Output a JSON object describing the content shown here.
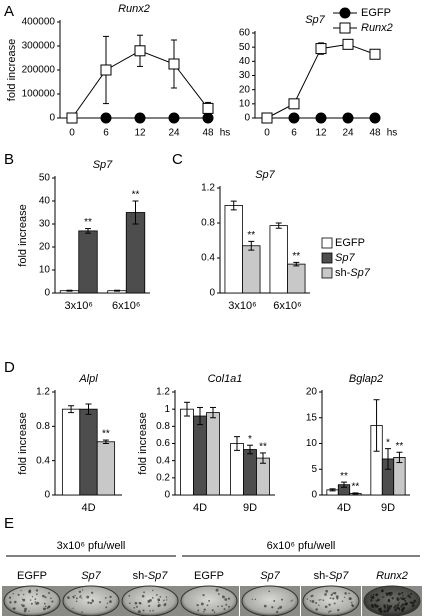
{
  "panels": [
    "A",
    "B",
    "C",
    "D",
    "E"
  ],
  "chart_data": [
    {
      "type": "line",
      "title": "Runx2",
      "title_italic": true,
      "ylabel": "fold increase",
      "xlabel": "hs",
      "categories": [
        "0",
        "6",
        "12",
        "24",
        "48"
      ],
      "ylim": [
        0,
        400000
      ],
      "yticks": [
        0,
        100000,
        200000,
        300000,
        400000
      ],
      "series": [
        {
          "color": "#000000",
          "marker": "circle",
          "fill": "#000000",
          "values": [
            0,
            0,
            0,
            0,
            0
          ]
        },
        {
          "color": "#000000",
          "marker": "square",
          "fill": "#ffffff",
          "values": [
            0,
            200000,
            280000,
            225000,
            40000
          ],
          "errors": [
            0,
            140000,
            65000,
            100000,
            25000
          ]
        }
      ]
    },
    {
      "type": "line",
      "title": "Sp7",
      "title_italic": true,
      "xlabel": "hs",
      "categories": [
        "0",
        "6",
        "12",
        "24",
        "48"
      ],
      "ylim": [
        0,
        60
      ],
      "yticks": [
        0,
        10,
        20,
        30,
        40,
        50,
        60
      ],
      "legend": "upper right",
      "series": [
        {
          "name": "EGFP",
          "italic": false,
          "color": "#000000",
          "marker": "circle",
          "fill": "#000000",
          "values": [
            0,
            0,
            0,
            0,
            0
          ]
        },
        {
          "name": "Runx2",
          "italic": true,
          "color": "#000000",
          "marker": "square",
          "fill": "#ffffff",
          "values": [
            0,
            10,
            49,
            52,
            45
          ],
          "errors": [
            0,
            1,
            4,
            2,
            3
          ]
        }
      ]
    },
    {
      "type": "bar",
      "title": "Sp7",
      "title_italic": true,
      "ylabel": "fold increase",
      "categories": [
        "3x10⁶",
        "6x10⁶"
      ],
      "ylim": [
        0,
        50
      ],
      "yticks": [
        0,
        10,
        20,
        30,
        40,
        50
      ],
      "series": [
        {
          "color": "#ffffff",
          "values": [
            1,
            1
          ],
          "errors": [
            0.2,
            0.2
          ],
          "significance": [
            null,
            null
          ]
        },
        {
          "color": "#4d4d4d",
          "values": [
            27,
            35
          ],
          "errors": [
            1,
            5
          ],
          "significance": [
            "**",
            "**"
          ]
        }
      ]
    },
    {
      "type": "bar",
      "title": "Sp7",
      "title_italic": true,
      "categories": [
        "3x10⁶",
        "6x10⁶"
      ],
      "ylim": [
        0,
        1.2
      ],
      "yticks": [
        0,
        0.4,
        0.8,
        1.2
      ],
      "series": [
        {
          "color": "#ffffff",
          "values": [
            1.0,
            0.77
          ],
          "errors": [
            0.05,
            0.03
          ],
          "significance": [
            null,
            null
          ]
        },
        {
          "color": "#c8c8c8",
          "values": [
            0.54,
            0.33
          ],
          "errors": [
            0.05,
            0.02
          ],
          "significance": [
            "**",
            "**"
          ]
        }
      ]
    },
    {
      "type": "bar",
      "title": "Alpl",
      "title_italic": true,
      "ylabel": "fold increase",
      "legend": "outside",
      "categories": [
        "4D"
      ],
      "ylim": [
        0,
        1.2
      ],
      "yticks": [
        0,
        0.4,
        0.8,
        1.2
      ],
      "series": [
        {
          "name": "EGFP",
          "italic": false,
          "color": "#ffffff",
          "values": [
            1.0
          ],
          "errors": [
            0.04
          ],
          "significance": [
            null
          ]
        },
        {
          "name": "Sp7",
          "italic": true,
          "color": "#4d4d4d",
          "values": [
            1.0
          ],
          "errors": [
            0.06
          ],
          "significance": [
            null
          ]
        },
        {
          "name": "sh-Sp7",
          "italic": true,
          "color": "#c8c8c8",
          "values": [
            0.62
          ],
          "errors": [
            0.02
          ],
          "significance": [
            "**"
          ]
        }
      ]
    },
    {
      "type": "bar",
      "title": "Col1a1",
      "title_italic": true,
      "ylabel": "fold increase",
      "categories": [
        "4D",
        "9D"
      ],
      "ylim": [
        0,
        1.2
      ],
      "yticks": [
        0,
        0.2,
        0.4,
        0.6,
        0.8,
        1,
        1.2
      ],
      "series": [
        {
          "color": "#ffffff",
          "values": [
            1.0,
            0.6
          ],
          "errors": [
            0.08,
            0.08
          ],
          "significance": [
            null,
            null
          ]
        },
        {
          "color": "#4d4d4d",
          "values": [
            0.92,
            0.53
          ],
          "errors": [
            0.1,
            0.05
          ],
          "significance": [
            null,
            "*"
          ]
        },
        {
          "color": "#c8c8c8",
          "values": [
            0.96,
            0.43
          ],
          "errors": [
            0.06,
            0.06
          ],
          "significance": [
            null,
            "**"
          ]
        }
      ]
    },
    {
      "type": "bar",
      "title": "Bglap2",
      "title_italic": true,
      "categories": [
        "4D",
        "9D"
      ],
      "ylim": [
        0,
        20
      ],
      "yticks": [
        0,
        5,
        10,
        15,
        20
      ],
      "series": [
        {
          "color": "#ffffff",
          "values": [
            1,
            13.5
          ],
          "errors": [
            0.2,
            5
          ],
          "significance": [
            null,
            null
          ]
        },
        {
          "color": "#4d4d4d",
          "values": [
            2,
            7
          ],
          "errors": [
            0.5,
            2
          ],
          "significance": [
            "**",
            "*"
          ]
        },
        {
          "color": "#c8c8c8",
          "values": [
            0.3,
            7.3
          ],
          "errors": [
            0.1,
            1
          ],
          "significance": [
            "**",
            "**"
          ]
        }
      ]
    }
  ],
  "panel_e": {
    "groups": [
      "3x10⁶ pfu/well",
      "6x10⁶ pfu/well"
    ],
    "wells": [
      {
        "label": "EGFP",
        "italic": false
      },
      {
        "label": "Sp7",
        "italic": true
      },
      {
        "label": "sh-Sp7",
        "italic": true
      },
      {
        "label": "EGFP",
        "italic": false
      },
      {
        "label": "Sp7",
        "italic": true
      },
      {
        "label": "sh-Sp7",
        "italic": true
      },
      {
        "label": "Runx2",
        "italic": true
      }
    ]
  }
}
